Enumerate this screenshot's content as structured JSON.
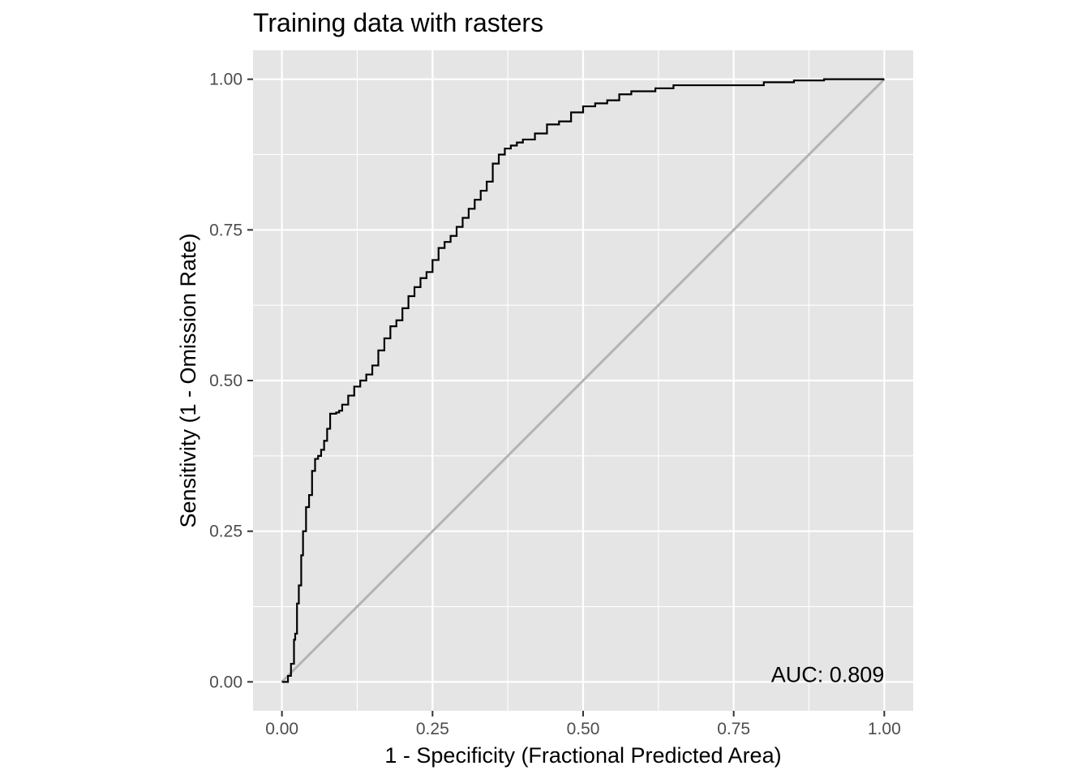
{
  "chart_data": {
    "type": "line",
    "title": "Training data with rasters",
    "xlabel": "1 - Specificity (Fractional Predicted Area)",
    "ylabel": "Sensitivity (1 - Omission Rate)",
    "xlim": [
      -0.048,
      1.048
    ],
    "ylim": [
      -0.048,
      1.048
    ],
    "x_ticks": [
      0.0,
      0.25,
      0.5,
      0.75,
      1.0
    ],
    "y_ticks": [
      0.0,
      0.25,
      0.5,
      0.75,
      1.0
    ],
    "x_tick_labels": [
      "0.00",
      "0.25",
      "0.50",
      "0.75",
      "1.00"
    ],
    "y_tick_labels": [
      "0.00",
      "0.25",
      "0.50",
      "0.75",
      "1.00"
    ],
    "grid": true,
    "annotation": "AUC: 0.809",
    "colors": {
      "panel_background": "#e5e5e5",
      "grid": "#ffffff",
      "roc_line": "#000000",
      "reference_line": "#b3b3b3"
    },
    "series": [
      {
        "style": "step",
        "x": [
          0.0,
          0.01,
          0.015,
          0.02,
          0.022,
          0.025,
          0.028,
          0.032,
          0.035,
          0.04,
          0.045,
          0.05,
          0.055,
          0.06,
          0.065,
          0.07,
          0.075,
          0.08,
          0.085,
          0.09,
          0.095,
          0.1,
          0.11,
          0.12,
          0.13,
          0.14,
          0.15,
          0.16,
          0.17,
          0.18,
          0.19,
          0.2,
          0.21,
          0.22,
          0.23,
          0.24,
          0.25,
          0.26,
          0.27,
          0.28,
          0.29,
          0.3,
          0.31,
          0.32,
          0.33,
          0.34,
          0.35,
          0.36,
          0.37,
          0.38,
          0.39,
          0.4,
          0.42,
          0.44,
          0.46,
          0.48,
          0.5,
          0.52,
          0.54,
          0.56,
          0.58,
          0.6,
          0.62,
          0.65,
          0.7,
          0.75,
          0.8,
          0.85,
          0.9,
          0.95,
          1.0
        ],
        "y": [
          0.0,
          0.01,
          0.03,
          0.07,
          0.08,
          0.13,
          0.16,
          0.21,
          0.25,
          0.29,
          0.31,
          0.35,
          0.37,
          0.375,
          0.385,
          0.4,
          0.42,
          0.445,
          0.445,
          0.447,
          0.45,
          0.46,
          0.475,
          0.49,
          0.5,
          0.51,
          0.525,
          0.55,
          0.57,
          0.59,
          0.6,
          0.62,
          0.64,
          0.655,
          0.67,
          0.68,
          0.7,
          0.72,
          0.73,
          0.74,
          0.755,
          0.77,
          0.785,
          0.8,
          0.815,
          0.83,
          0.86,
          0.875,
          0.885,
          0.89,
          0.895,
          0.9,
          0.91,
          0.925,
          0.93,
          0.945,
          0.955,
          0.96,
          0.965,
          0.975,
          0.98,
          0.98,
          0.985,
          0.99,
          0.99,
          0.99,
          0.995,
          0.998,
          1.0,
          1.0,
          1.0
        ]
      },
      {
        "style": "reference",
        "x": [
          0.0,
          1.0
        ],
        "y": [
          0.0,
          1.0
        ]
      }
    ]
  }
}
